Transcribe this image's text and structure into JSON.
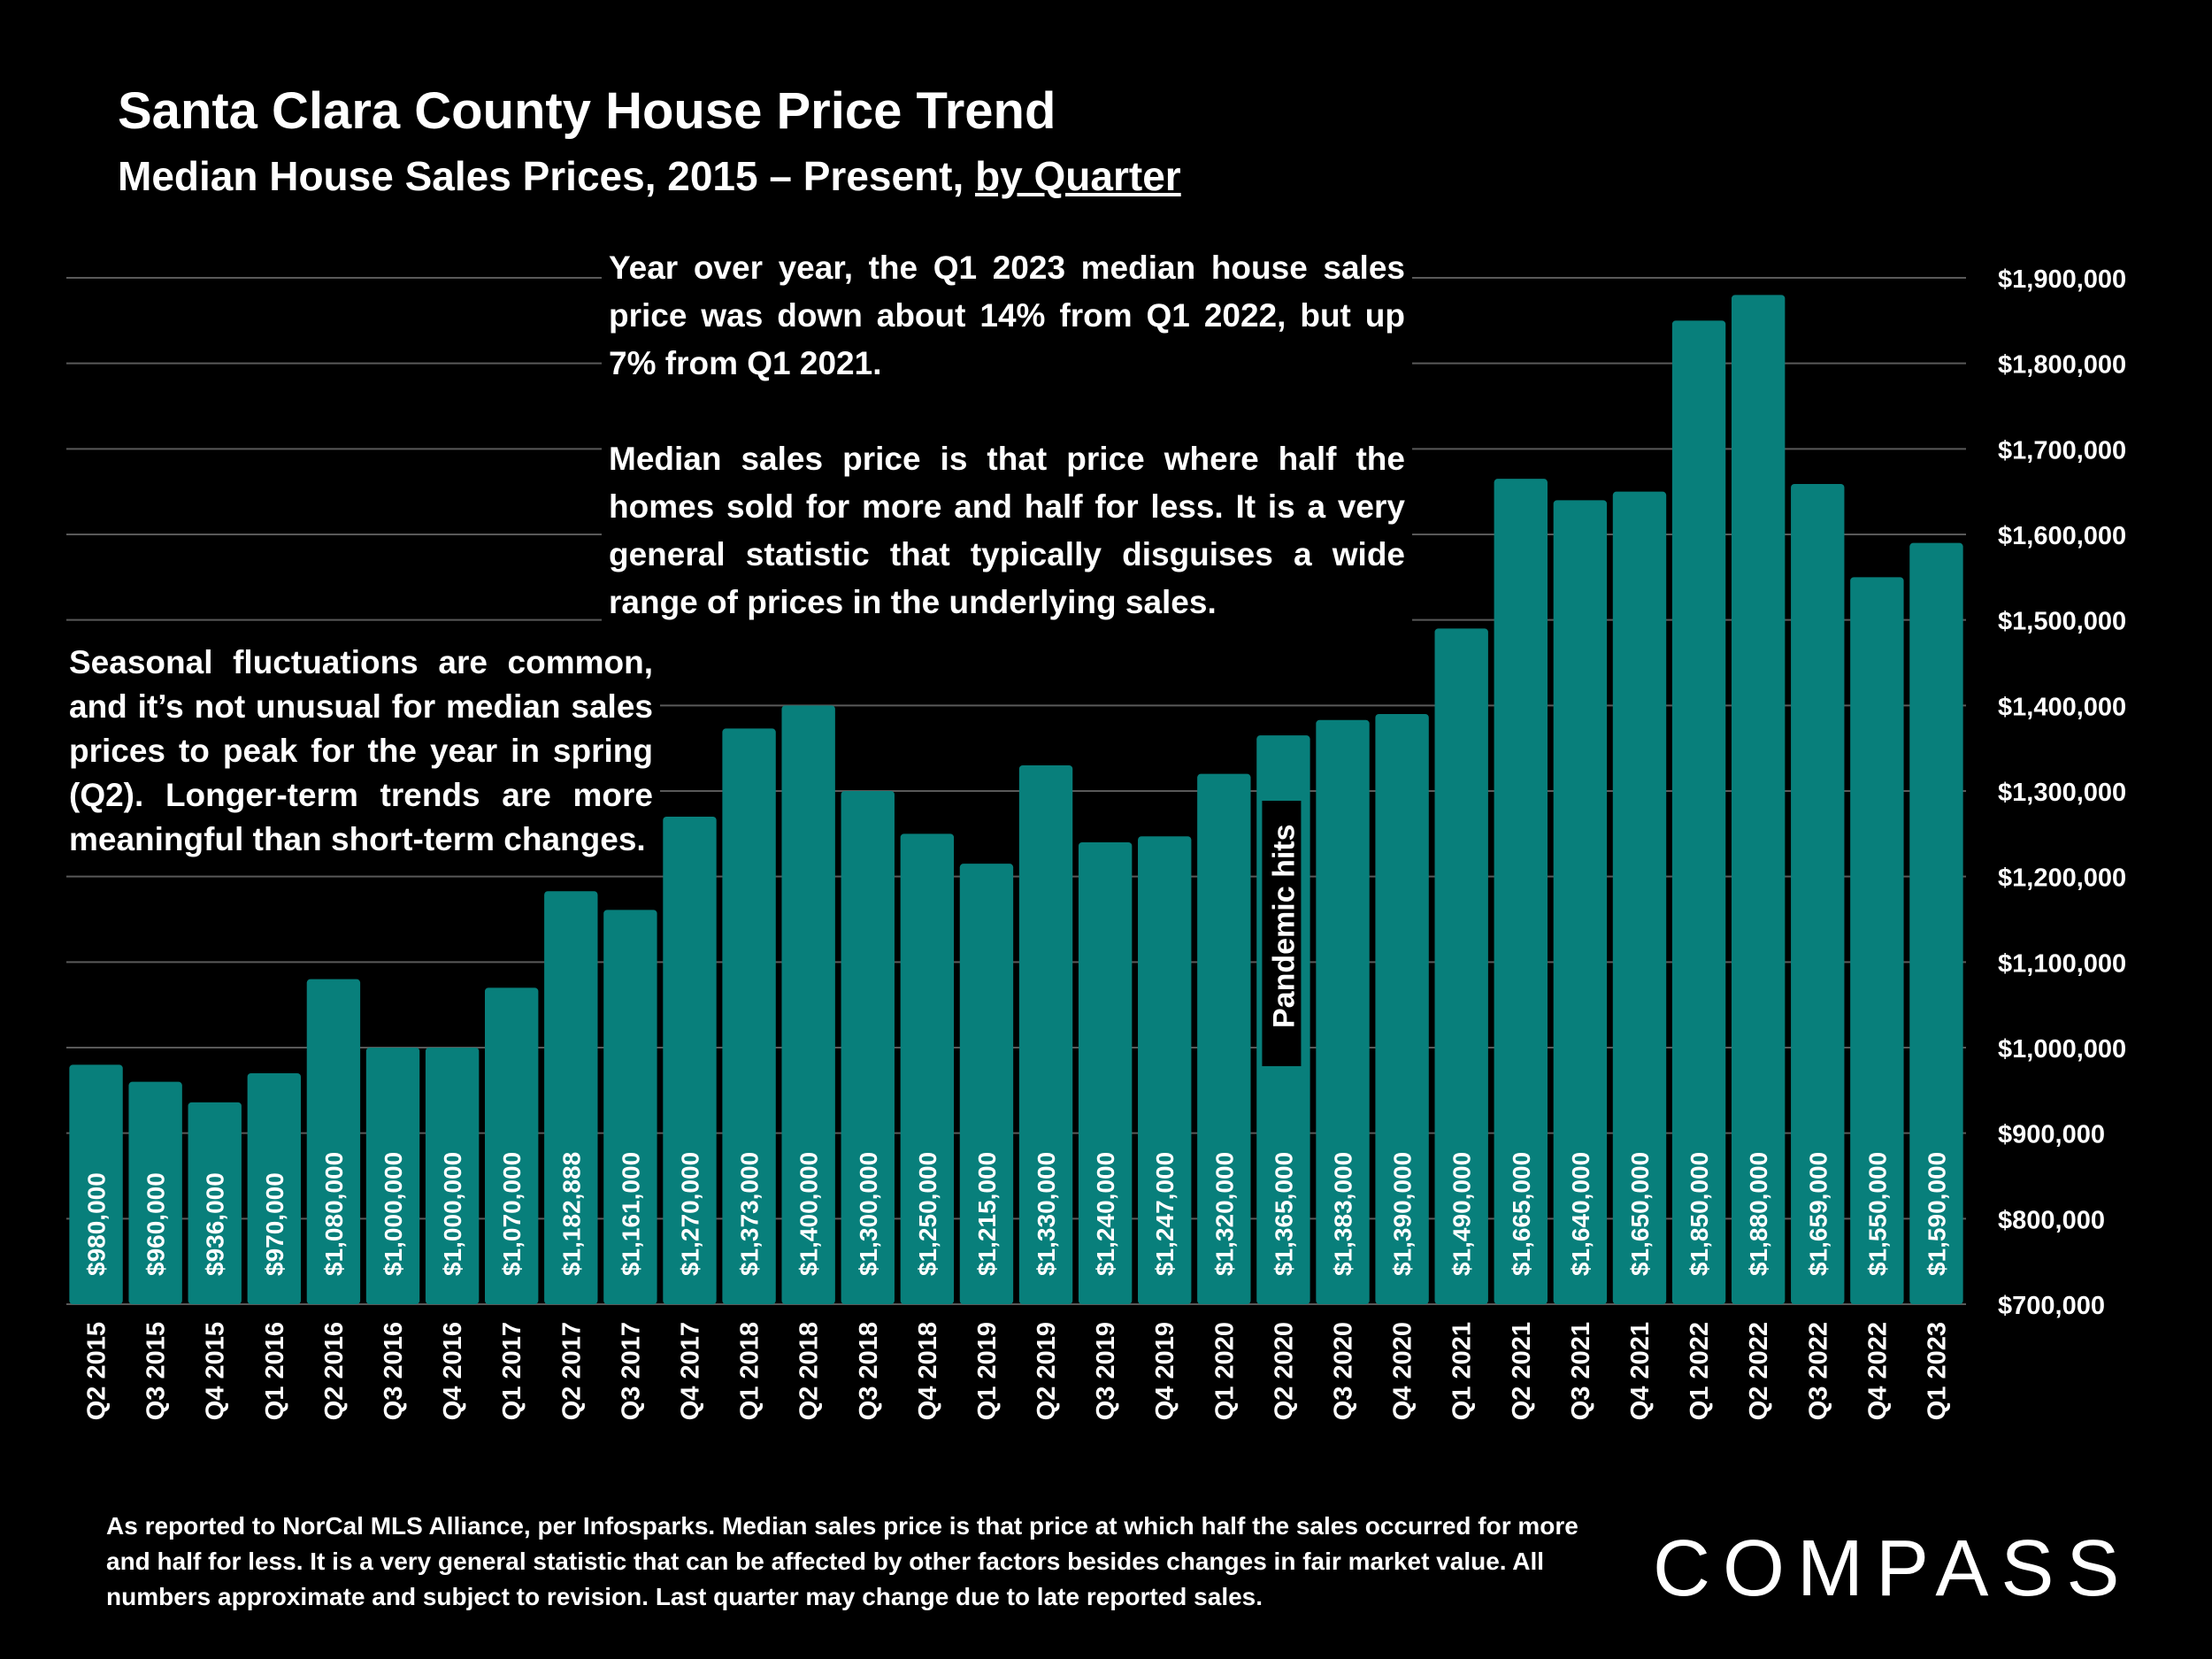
{
  "header": {
    "title": "Santa Clara County House Price Trend",
    "subtitle_main": "Median House Sales Prices, 2015 – Present, ",
    "subtitle_link": "by Quarter"
  },
  "annotations": {
    "top_para1": "Year over year, the Q1 2023 median house sales price was down about 14% from Q1 2022, but up 7% from Q1 2021.",
    "top_para2": "Median sales price is that price where half the homes sold for more and half for less. It is a very general statistic that typically disguises a wide range of prices in the underlying sales.",
    "left_note": "Seasonal fluctuations are common, and it’s not unusual for median sales prices to peak for the year in spring (Q2). Longer-term trends are more meaningful than short-term changes.",
    "pandemic": "Pandemic hits"
  },
  "footnote": "As reported to NorCal MLS Alliance, per Infosparks. Median sales price is that price at which half the sales occurred for more and half for less. It is a very general statistic that can be affected by other factors besides changes in fair market value. All numbers approximate and subject to revision. Last quarter may change due to late reported sales.",
  "logo": "COMPASS",
  "colors": {
    "bar": "#087F7B",
    "background": "#000000",
    "grid": "#595959",
    "text": "#ffffff"
  },
  "chart_data": {
    "type": "bar",
    "title": "Santa Clara County House Price Trend",
    "categories": [
      "Q2 2015",
      "Q3 2015",
      "Q4 2015",
      "Q1 2016",
      "Q2 2016",
      "Q3 2016",
      "Q4 2016",
      "Q1 2017",
      "Q2 2017",
      "Q3 2017",
      "Q4 2017",
      "Q1 2018",
      "Q2 2018",
      "Q3 2018",
      "Q4 2018",
      "Q1 2019",
      "Q2 2019",
      "Q3 2019",
      "Q4 2019",
      "Q1 2020",
      "Q2 2020",
      "Q3 2020",
      "Q4 2020",
      "Q1 2021",
      "Q2 2021",
      "Q3 2021",
      "Q4 2021",
      "Q1 2022",
      "Q2 2022",
      "Q3 2022",
      "Q4 2022",
      "Q1 2023"
    ],
    "values": [
      980000,
      960000,
      936000,
      970000,
      1080000,
      1000000,
      1000000,
      1070000,
      1182888,
      1161000,
      1270000,
      1373000,
      1400000,
      1300000,
      1250000,
      1215000,
      1330000,
      1240000,
      1247000,
      1320000,
      1365000,
      1383000,
      1390000,
      1490000,
      1665000,
      1640000,
      1650000,
      1850000,
      1880000,
      1659000,
      1550000,
      1590000
    ],
    "value_labels": [
      "$980,000",
      "$960,000",
      "$936,000",
      "$970,000",
      "$1,080,000",
      "$1,000,000",
      "$1,000,000",
      "$1,070,000",
      "$1,182,888",
      "$1,161,000",
      "$1,270,000",
      "$1,373,000",
      "$1,400,000",
      "$1,300,000",
      "$1,250,000",
      "$1,215,000",
      "$1,330,000",
      "$1,240,000",
      "$1,247,000",
      "$1,320,000",
      "$1,365,000",
      "$1,383,000",
      "$1,390,000",
      "$1,490,000",
      "$1,665,000",
      "$1,640,000",
      "$1,650,000",
      "$1,850,000",
      "$1,880,000",
      "$1,659,000",
      "$1,550,000",
      "$1,590,000"
    ],
    "ylim": [
      700000,
      1900000
    ],
    "yticks": [
      700000,
      800000,
      900000,
      1000000,
      1100000,
      1200000,
      1300000,
      1400000,
      1500000,
      1600000,
      1700000,
      1800000,
      1900000
    ],
    "ytick_labels": [
      "$700,000",
      "$800,000",
      "$900,000",
      "$1,000,000",
      "$1,100,000",
      "$1,200,000",
      "$1,300,000",
      "$1,400,000",
      "$1,500,000",
      "$1,600,000",
      "$1,700,000",
      "$1,800,000",
      "$1,900,000"
    ],
    "y_axis_side": "right",
    "grid": true,
    "xlabel": "",
    "ylabel": ""
  }
}
